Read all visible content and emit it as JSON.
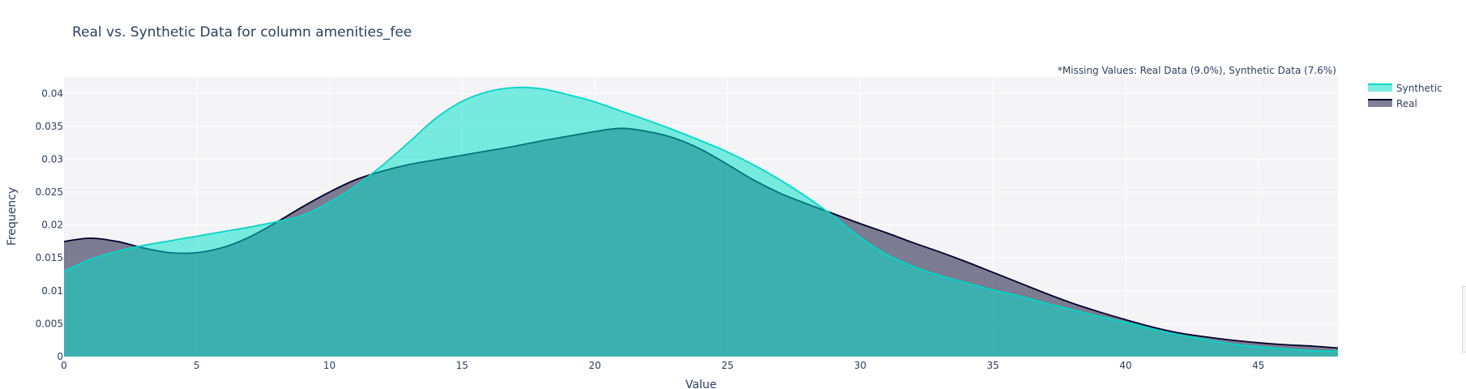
{
  "chart_data": {
    "type": "area",
    "title": "Real vs. Synthetic Data for column amenities_fee",
    "xlabel": "Value",
    "ylabel": "Frequency",
    "xlim": [
      0,
      48
    ],
    "ylim": [
      0,
      0.0425
    ],
    "x_ticks": [
      0,
      5,
      10,
      15,
      20,
      25,
      30,
      35,
      40,
      45
    ],
    "y_ticks": [
      0,
      0.005,
      0.01,
      0.015,
      0.02,
      0.025,
      0.03,
      0.035,
      0.04
    ],
    "y_tick_labels": [
      "0",
      "0.005",
      "0.01",
      "0.015",
      "0.02",
      "0.025",
      "0.03",
      "0.035",
      "0.04"
    ],
    "annotation": "*Missing Values: Real Data (9.0%), Synthetic Data (7.6%)",
    "legend_position": "top-right",
    "grid": true,
    "series": [
      {
        "name": "Real",
        "line_color": "#01012b",
        "fill_color": "rgba(1,1,43,0.5)",
        "points": [
          [
            0,
            0.0175
          ],
          [
            1,
            0.018
          ],
          [
            2,
            0.0175
          ],
          [
            3,
            0.0165
          ],
          [
            4,
            0.0158
          ],
          [
            5,
            0.0158
          ],
          [
            6,
            0.0166
          ],
          [
            7,
            0.0182
          ],
          [
            8,
            0.0204
          ],
          [
            9,
            0.0228
          ],
          [
            10,
            0.025
          ],
          [
            11,
            0.0269
          ],
          [
            12,
            0.0282
          ],
          [
            13,
            0.0292
          ],
          [
            14,
            0.0299
          ],
          [
            15,
            0.0306
          ],
          [
            16,
            0.0313
          ],
          [
            17,
            0.032
          ],
          [
            18,
            0.0328
          ],
          [
            19,
            0.0335
          ],
          [
            20,
            0.0342
          ],
          [
            21,
            0.0347
          ],
          [
            22,
            0.0342
          ],
          [
            23,
            0.0332
          ],
          [
            24,
            0.0315
          ],
          [
            25,
            0.0292
          ],
          [
            26,
            0.0268
          ],
          [
            27,
            0.0248
          ],
          [
            28,
            0.0232
          ],
          [
            29,
            0.0217
          ],
          [
            30,
            0.0202
          ],
          [
            31,
            0.0188
          ],
          [
            32,
            0.0173
          ],
          [
            33,
            0.0159
          ],
          [
            34,
            0.0144
          ],
          [
            35,
            0.0128
          ],
          [
            36,
            0.0112
          ],
          [
            37,
            0.0096
          ],
          [
            38,
            0.0081
          ],
          [
            39,
            0.0068
          ],
          [
            40,
            0.0056
          ],
          [
            41,
            0.0045
          ],
          [
            42,
            0.0036
          ],
          [
            43,
            0.003
          ],
          [
            44,
            0.0025
          ],
          [
            45,
            0.0021
          ],
          [
            46,
            0.0018
          ],
          [
            47,
            0.0016
          ],
          [
            48,
            0.0013
          ]
        ]
      },
      {
        "name": "Synthetic",
        "line_color": "#02d6c8",
        "fill_color": "rgba(1,224,201,0.52)",
        "points": [
          [
            0,
            0.013
          ],
          [
            1,
            0.0148
          ],
          [
            2,
            0.016
          ],
          [
            3,
            0.0169
          ],
          [
            4,
            0.0176
          ],
          [
            5,
            0.0183
          ],
          [
            6,
            0.019
          ],
          [
            7,
            0.0197
          ],
          [
            8,
            0.0205
          ],
          [
            9,
            0.0215
          ],
          [
            10,
            0.0235
          ],
          [
            11,
            0.026
          ],
          [
            12,
            0.0291
          ],
          [
            13,
            0.0326
          ],
          [
            14,
            0.0362
          ],
          [
            15,
            0.0388
          ],
          [
            16,
            0.0403
          ],
          [
            17,
            0.0409
          ],
          [
            18,
            0.0407
          ],
          [
            19,
            0.0398
          ],
          [
            20,
            0.0387
          ],
          [
            21,
            0.0373
          ],
          [
            22,
            0.0359
          ],
          [
            23,
            0.0344
          ],
          [
            24,
            0.0328
          ],
          [
            25,
            0.0311
          ],
          [
            26,
            0.0291
          ],
          [
            27,
            0.0268
          ],
          [
            28,
            0.0242
          ],
          [
            29,
            0.0213
          ],
          [
            30,
            0.0181
          ],
          [
            31,
            0.0155
          ],
          [
            32,
            0.0137
          ],
          [
            33,
            0.0123
          ],
          [
            34,
            0.0112
          ],
          [
            35,
            0.0101
          ],
          [
            36,
            0.0092
          ],
          [
            37,
            0.0081
          ],
          [
            38,
            0.0071
          ],
          [
            39,
            0.0061
          ],
          [
            40,
            0.0052
          ],
          [
            41,
            0.0042
          ],
          [
            42,
            0.0033
          ],
          [
            43,
            0.0026
          ],
          [
            44,
            0.0019
          ],
          [
            45,
            0.0015
          ],
          [
            46,
            0.0012
          ],
          [
            47,
            0.0009
          ],
          [
            48,
            0.0008
          ]
        ]
      }
    ],
    "legend_order": [
      "Synthetic",
      "Real"
    ]
  },
  "colors": {
    "plot_background": "#f4f4f7",
    "grid": "#ffffff",
    "text": "#2a3f5f"
  }
}
